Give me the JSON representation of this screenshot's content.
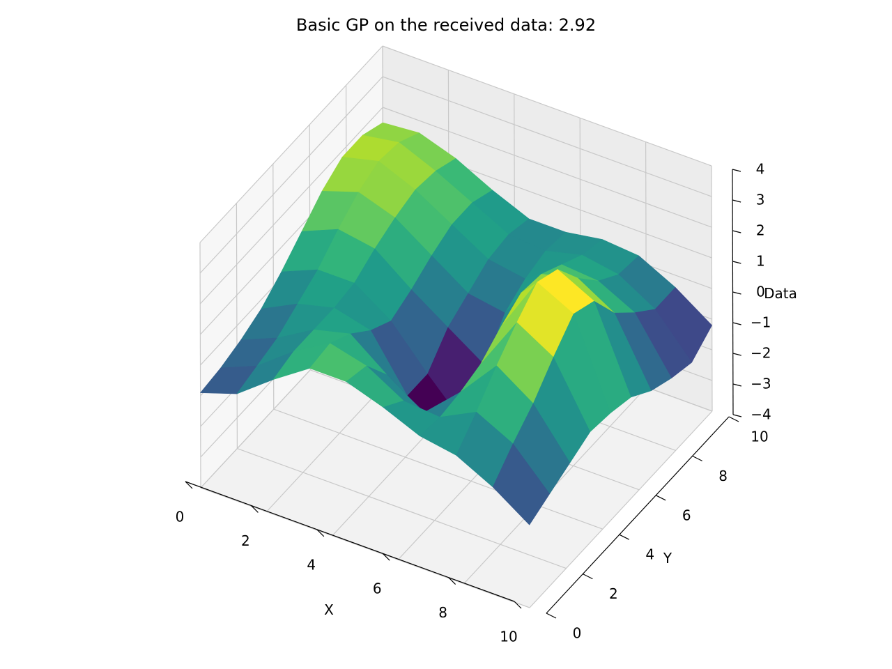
{
  "chart_data": {
    "type": "surface",
    "title": "Basic GP on the received data: 2.92",
    "xlabel": "X",
    "ylabel": "Y",
    "zlabel": "Data",
    "xlim": [
      0,
      10
    ],
    "ylim": [
      0,
      10
    ],
    "zlim": [
      -4,
      4
    ],
    "x_ticks": [
      "0",
      "2",
      "4",
      "6",
      "8",
      "10"
    ],
    "y_ticks": [
      "0",
      "2",
      "4",
      "6",
      "8",
      "10"
    ],
    "z_ticks": [
      "−4",
      "−3",
      "−2",
      "−1",
      "0",
      "1",
      "2",
      "3",
      "4"
    ],
    "x_tick_values": [
      0,
      2,
      4,
      6,
      8,
      10
    ],
    "y_tick_values": [
      0,
      2,
      4,
      6,
      8,
      10
    ],
    "z_tick_values": [
      -4,
      -3,
      -2,
      -1,
      0,
      1,
      2,
      3,
      4
    ],
    "colormap": "viridis",
    "grid": true,
    "surface_x": [
      0,
      1.11,
      2.22,
      3.33,
      4.44,
      5.56,
      6.67,
      7.78,
      8.89,
      10
    ],
    "surface_y": [
      0,
      1.11,
      2.22,
      3.33,
      4.44,
      5.56,
      6.67,
      7.78,
      8.89,
      10
    ],
    "z": [
      [
        -0.9,
        -0.8,
        -0.6,
        -0.3,
        0.2,
        0.8,
        1.4,
        1.8,
        1.8,
        1.5
      ],
      [
        -0.5,
        -0.3,
        -0.1,
        0.3,
        0.7,
        1.3,
        1.8,
        2.1,
        2.0,
        1.6
      ],
      [
        0.4,
        0.6,
        0.6,
        0.6,
        0.7,
        1.1,
        1.4,
        1.6,
        1.5,
        1.2
      ],
      [
        1.2,
        1.3,
        0.9,
        0.3,
        -0.1,
        0.2,
        0.6,
        0.9,
        0.9,
        0.6
      ],
      [
        1.2,
        1.0,
        0.0,
        -1.4,
        -1.4,
        -0.6,
        -0.2,
        0.2,
        0.3,
        0.1
      ],
      [
        0.8,
        0.3,
        -0.8,
        -2.1,
        -2.6,
        -1.4,
        -0.4,
        0.0,
        0.2,
        0.1
      ],
      [
        0.3,
        0.2,
        0.3,
        0.5,
        1.0,
        1.4,
        1.3,
        0.9,
        0.5,
        0.3
      ],
      [
        0.1,
        0.8,
        1.6,
        2.3,
        2.9,
        2.6,
        1.6,
        0.8,
        0.3,
        0.2
      ],
      [
        -0.5,
        0.2,
        0.8,
        1.6,
        2.3,
        2.0,
        0.9,
        0.2,
        -0.4,
        -0.4
      ],
      [
        -1.3,
        -1.0,
        -0.7,
        -0.4,
        -0.5,
        -0.7,
        -1.2,
        -1.5,
        -1.7,
        -1.2
      ]
    ]
  }
}
